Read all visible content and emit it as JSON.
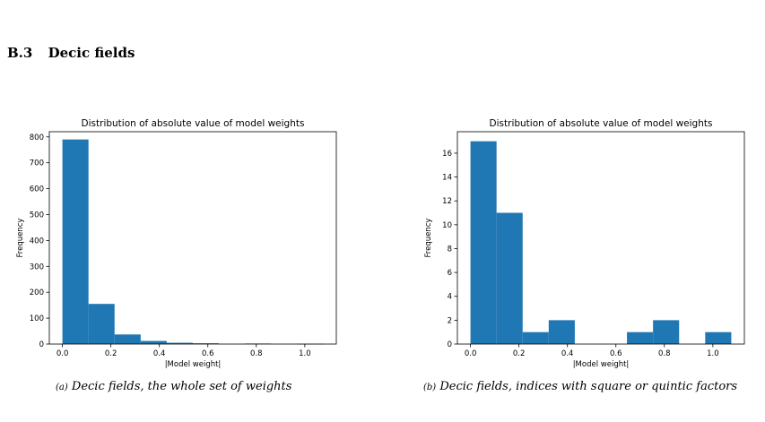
{
  "page": {
    "top_text": "",
    "section_number": "B.3",
    "section_title": "Decic fields",
    "bottom_text": ""
  },
  "figures": [
    {
      "caption_tag": "(a)",
      "caption_text": "Decic fields, the whole set of weights"
    },
    {
      "caption_tag": "(b)",
      "caption_text": "Decic fields, indices with square or quintic factors"
    }
  ],
  "chart_data": [
    {
      "type": "bar",
      "title": "Distribution of absolute value of model weights",
      "xlabel": "|Model weight|",
      "ylabel": "Frequency",
      "bin_edges": [
        0.0,
        0.1076,
        0.2152,
        0.3228,
        0.4304,
        0.538,
        0.6456,
        0.7532,
        0.8608,
        0.9684,
        1.076
      ],
      "values": [
        790,
        155,
        37,
        12,
        5,
        3,
        0,
        2,
        0,
        1
      ],
      "xlim": [
        -0.054,
        1.13
      ],
      "ylim": [
        0,
        820
      ],
      "xticks": [
        0.0,
        0.2,
        0.4,
        0.6,
        0.8,
        1.0
      ],
      "yticks": [
        0,
        100,
        200,
        300,
        400,
        500,
        600,
        700,
        800
      ],
      "color": "#1f77b4"
    },
    {
      "type": "bar",
      "title": "Distribution of absolute value of model weights",
      "xlabel": "|Model weight|",
      "ylabel": "Frequency",
      "bin_edges": [
        0.0,
        0.1076,
        0.2152,
        0.3228,
        0.4304,
        0.538,
        0.6456,
        0.7532,
        0.8608,
        0.9684,
        1.076
      ],
      "values": [
        17,
        11,
        1,
        2,
        0,
        0,
        1,
        2,
        0,
        1
      ],
      "xlim": [
        -0.054,
        1.13
      ],
      "ylim": [
        0,
        17.8
      ],
      "xticks": [
        0.0,
        0.2,
        0.4,
        0.6,
        0.8,
        1.0
      ],
      "yticks": [
        0,
        2,
        4,
        6,
        8,
        10,
        12,
        14,
        16
      ],
      "color": "#1f77b4"
    }
  ]
}
